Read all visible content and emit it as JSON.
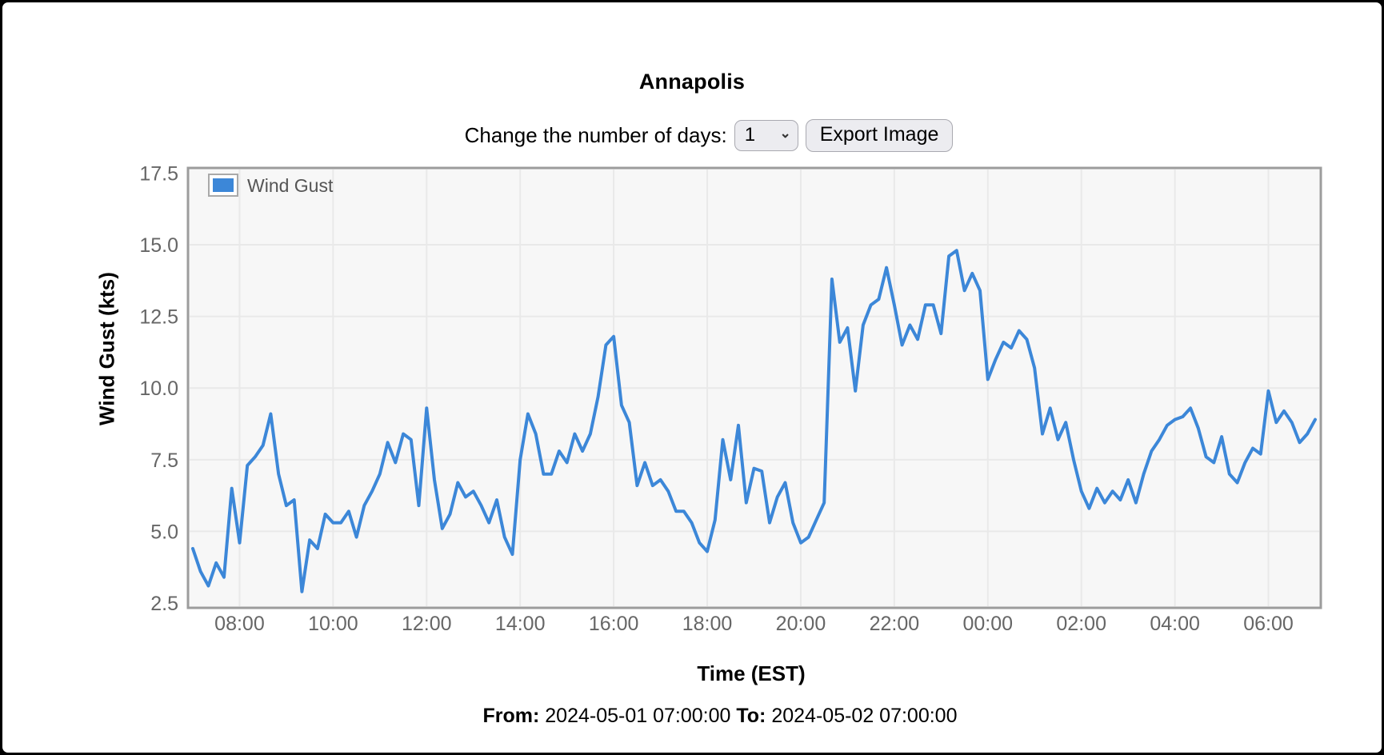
{
  "header": {
    "title": "Annapolis"
  },
  "controls": {
    "label": "Change the number of days:",
    "days_select": {
      "value": "1",
      "options": [
        "1"
      ]
    },
    "export_button_label": "Export Image"
  },
  "chart": {
    "legend_label": "Wind Gust",
    "y_axis_title": "Wind Gust (kts)",
    "x_axis_title": "Time (EST)",
    "colors": {
      "line": "#3c87d8",
      "plot_bg": "#f7f7f7",
      "grid": "#e9e9e9",
      "frame": "#9c9c9c",
      "tick_text": "#666666",
      "legend_text": "#555555",
      "legend_swatch_border": "#a9a9a9"
    }
  },
  "footer": {
    "from_label": "From:",
    "from_value": "2024-05-01 07:00:00",
    "to_label": "To:",
    "to_value": "2024-05-02 07:00:00"
  },
  "chart_data": {
    "type": "line",
    "title": "Annapolis",
    "series_name": "Wind Gust",
    "xlabel": "Time (EST)",
    "ylabel": "Wind Gust (kts)",
    "ylim": [
      2.5,
      17.5
    ],
    "y_ticks": [
      2.5,
      5.0,
      7.5,
      10.0,
      12.5,
      15.0,
      17.5
    ],
    "x_tick_labels": [
      "08:00",
      "10:00",
      "12:00",
      "14:00",
      "16:00",
      "18:00",
      "20:00",
      "22:00",
      "00:00",
      "02:00",
      "04:00",
      "06:00"
    ],
    "x_tick_hours_from_start": [
      1,
      3,
      5,
      7,
      9,
      11,
      13,
      15,
      17,
      19,
      21,
      23
    ],
    "start_time": "2024-05-01 07:00:00",
    "end_time": "2024-05-02 07:00:00",
    "interval_minutes": 10,
    "grid": true,
    "legend_position": "top-left-inside",
    "values_kts": [
      4.4,
      3.6,
      3.1,
      3.9,
      3.4,
      6.5,
      4.6,
      7.3,
      7.6,
      8.0,
      9.1,
      7.0,
      5.9,
      6.1,
      2.9,
      4.7,
      4.4,
      5.6,
      5.3,
      5.3,
      5.7,
      4.8,
      5.9,
      6.4,
      7.0,
      8.1,
      7.4,
      8.4,
      8.2,
      5.9,
      9.3,
      6.8,
      5.1,
      5.6,
      6.7,
      6.2,
      6.4,
      5.9,
      5.3,
      6.1,
      4.8,
      4.2,
      7.5,
      9.1,
      8.4,
      7.0,
      7.0,
      7.8,
      7.4,
      8.4,
      7.8,
      8.4,
      9.7,
      11.5,
      11.8,
      9.4,
      8.8,
      6.6,
      7.4,
      6.6,
      6.8,
      6.4,
      5.7,
      5.7,
      5.3,
      4.6,
      4.3,
      5.4,
      8.2,
      6.8,
      8.7,
      6.0,
      7.2,
      7.1,
      5.3,
      6.2,
      6.7,
      5.3,
      4.6,
      4.8,
      5.4,
      6.0,
      13.8,
      11.6,
      12.1,
      9.9,
      12.2,
      12.9,
      13.1,
      14.2,
      12.9,
      11.5,
      12.2,
      11.7,
      12.9,
      12.9,
      11.9,
      14.6,
      14.8,
      13.4,
      14.0,
      13.4,
      10.3,
      11.0,
      11.6,
      11.4,
      12.0,
      11.7,
      10.7,
      8.4,
      9.3,
      8.2,
      8.8,
      7.5,
      6.4,
      5.8,
      6.5,
      6.0,
      6.4,
      6.1,
      6.8,
      6.0,
      7.0,
      7.8,
      8.2,
      8.7,
      8.9,
      9.0,
      9.3,
      8.6,
      7.6,
      7.4,
      8.3,
      7.0,
      6.7,
      7.4,
      7.9,
      7.7,
      9.9,
      8.8,
      9.2,
      8.8,
      8.1,
      8.4,
      8.9
    ]
  }
}
